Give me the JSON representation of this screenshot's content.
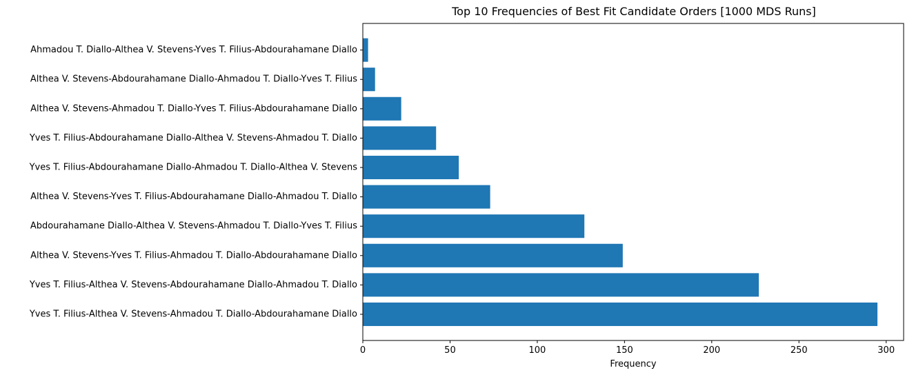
{
  "chart_data": {
    "type": "bar",
    "orientation": "horizontal",
    "title": "Top 10 Frequencies of Best Fit Candidate Orders [1000 MDS Runs]",
    "xlabel": "Frequency",
    "ylabel": "",
    "xlim": [
      0,
      310
    ],
    "x_ticks": [
      0,
      50,
      100,
      150,
      200,
      250,
      300
    ],
    "grid": false,
    "bar_color": "#1f77b4",
    "categories": [
      "Yves T. Filius-Althea V. Stevens-Ahmadou T. Diallo-Abdourahamane Diallo",
      "Yves T. Filius-Althea V. Stevens-Abdourahamane Diallo-Ahmadou T. Diallo",
      "Althea V. Stevens-Yves T. Filius-Ahmadou T. Diallo-Abdourahamane Diallo",
      "Abdourahamane Diallo-Althea V. Stevens-Ahmadou T. Diallo-Yves T. Filius",
      "Althea V. Stevens-Yves T. Filius-Abdourahamane Diallo-Ahmadou T. Diallo",
      "Yves T. Filius-Abdourahamane Diallo-Ahmadou T. Diallo-Althea V. Stevens",
      "Yves T. Filius-Abdourahamane Diallo-Althea V. Stevens-Ahmadou T. Diallo",
      "Althea V. Stevens-Ahmadou T. Diallo-Yves T. Filius-Abdourahamane Diallo",
      "Althea V. Stevens-Abdourahamane Diallo-Ahmadou T. Diallo-Yves T. Filius",
      "Ahmadou T. Diallo-Althea V. Stevens-Yves T. Filius-Abdourahamane Diallo"
    ],
    "values": [
      295,
      227,
      149,
      127,
      73,
      55,
      42,
      22,
      7,
      3
    ]
  }
}
